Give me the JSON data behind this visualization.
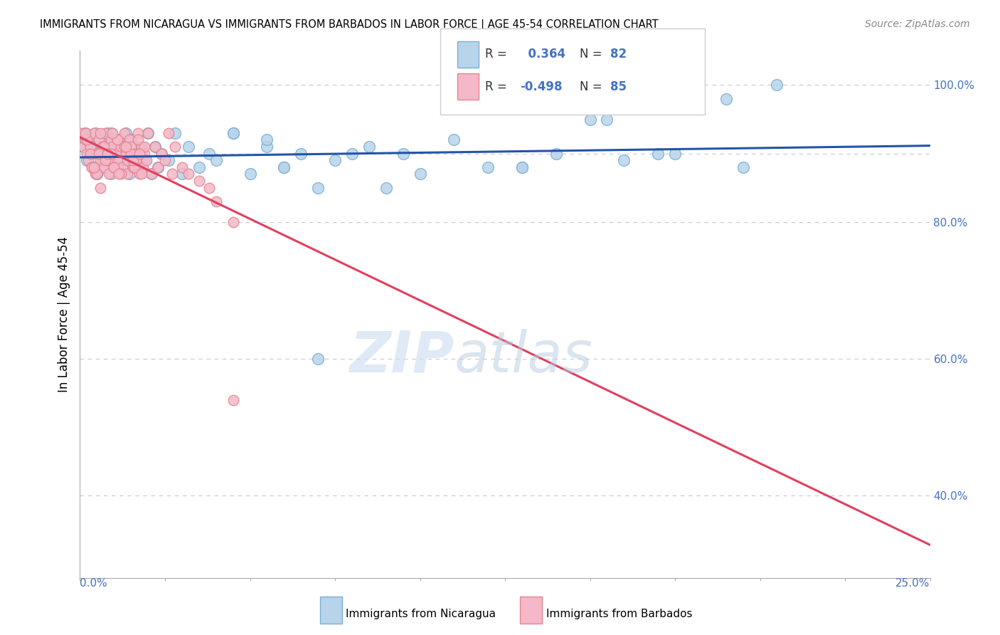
{
  "title": "IMMIGRANTS FROM NICARAGUA VS IMMIGRANTS FROM BARBADOS IN LABOR FORCE | AGE 45-54 CORRELATION CHART",
  "source": "Source: ZipAtlas.com",
  "ylabel": "In Labor Force | Age 45-54",
  "xlim": [
    0.0,
    25.0
  ],
  "ylim": [
    28.0,
    105.0
  ],
  "nicaragua_color": "#b8d4ea",
  "barbados_color": "#f4b8c8",
  "nicaragua_edge": "#7aafd4",
  "barbados_edge": "#e8848f",
  "blue_line_color": "#2255aa",
  "pink_line_color": "#e04060",
  "dashed_line_color": "#c8c8d8",
  "R_nicaragua": 0.364,
  "N_nicaragua": 82,
  "R_barbados": -0.498,
  "N_barbados": 85,
  "legend_label_nicaragua": "Immigrants from Nicaragua",
  "legend_label_barbados": "Immigrants from Barbados",
  "watermark_zip": "ZIP",
  "watermark_atlas": "atlas",
  "nicaragua_x": [
    0.1,
    0.15,
    0.2,
    0.25,
    0.3,
    0.35,
    0.4,
    0.45,
    0.5,
    0.55,
    0.6,
    0.65,
    0.7,
    0.75,
    0.8,
    0.85,
    0.9,
    0.95,
    1.0,
    1.05,
    1.1,
    1.15,
    1.2,
    1.25,
    1.3,
    1.35,
    1.4,
    1.45,
    1.5,
    1.6,
    1.7,
    1.8,
    1.9,
    2.0,
    2.1,
    2.2,
    2.3,
    2.4,
    2.6,
    2.8,
    3.0,
    3.2,
    3.5,
    3.8,
    4.0,
    4.5,
    5.0,
    5.5,
    6.0,
    6.5,
    7.0,
    7.5,
    8.0,
    9.0,
    10.0,
    11.0,
    12.0,
    13.0,
    14.0,
    15.0,
    16.0,
    17.0,
    19.0,
    20.5,
    0.3,
    0.5,
    0.7,
    0.9,
    1.1,
    1.3,
    1.5,
    1.7,
    4.5,
    6.0,
    7.0,
    9.5,
    13.0,
    15.5,
    8.5,
    5.5,
    17.5,
    19.5
  ],
  "nicaragua_y": [
    91,
    93,
    89,
    92,
    90,
    91,
    88,
    93,
    87,
    90,
    92,
    89,
    91,
    88,
    93,
    90,
    87,
    92,
    91,
    88,
    90,
    92,
    89,
    91,
    88,
    93,
    90,
    87,
    92,
    91,
    88,
    90,
    89,
    93,
    87,
    91,
    88,
    90,
    89,
    93,
    87,
    91,
    88,
    90,
    89,
    93,
    87,
    91,
    88,
    90,
    60,
    89,
    90,
    85,
    87,
    92,
    88,
    88,
    90,
    95,
    89,
    90,
    98,
    100,
    91,
    87,
    90,
    93,
    88,
    91,
    89,
    90,
    93,
    88,
    85,
    90,
    88,
    95,
    91,
    92,
    90,
    88
  ],
  "barbados_x": [
    0.05,
    0.1,
    0.15,
    0.2,
    0.25,
    0.3,
    0.35,
    0.4,
    0.45,
    0.5,
    0.55,
    0.6,
    0.65,
    0.7,
    0.75,
    0.8,
    0.85,
    0.9,
    0.95,
    1.0,
    1.05,
    1.1,
    1.15,
    1.2,
    1.25,
    1.3,
    1.35,
    1.4,
    1.45,
    1.5,
    1.55,
    1.6,
    1.65,
    1.7,
    1.75,
    1.8,
    1.85,
    1.9,
    1.95,
    2.0,
    2.1,
    2.2,
    2.3,
    2.4,
    2.5,
    2.6,
    2.7,
    2.8,
    3.0,
    3.2,
    3.5,
    3.8,
    4.0,
    4.5,
    0.2,
    0.3,
    0.4,
    0.5,
    0.6,
    0.7,
    0.8,
    0.9,
    1.0,
    1.1,
    1.2,
    1.3,
    1.4,
    1.5,
    1.6,
    1.7,
    1.8,
    1.9,
    0.15,
    0.35,
    0.55,
    0.75,
    0.95,
    1.15,
    1.35,
    1.55,
    1.75,
    4.5,
    0.4,
    0.6,
    0.8
  ],
  "barbados_y": [
    93,
    91,
    92,
    90,
    89,
    91,
    88,
    93,
    87,
    90,
    92,
    89,
    91,
    88,
    93,
    90,
    87,
    92,
    91,
    88,
    90,
    92,
    89,
    91,
    88,
    93,
    90,
    87,
    92,
    91,
    88,
    90,
    89,
    93,
    87,
    91,
    88,
    90,
    89,
    93,
    87,
    91,
    88,
    90,
    89,
    93,
    87,
    91,
    88,
    87,
    86,
    85,
    83,
    80,
    92,
    90,
    88,
    87,
    93,
    91,
    89,
    90,
    88,
    92,
    87,
    91,
    89,
    90,
    88,
    92,
    87,
    91,
    93,
    88,
    90,
    89,
    93,
    87,
    91,
    89,
    90,
    54,
    88,
    85,
    90
  ]
}
